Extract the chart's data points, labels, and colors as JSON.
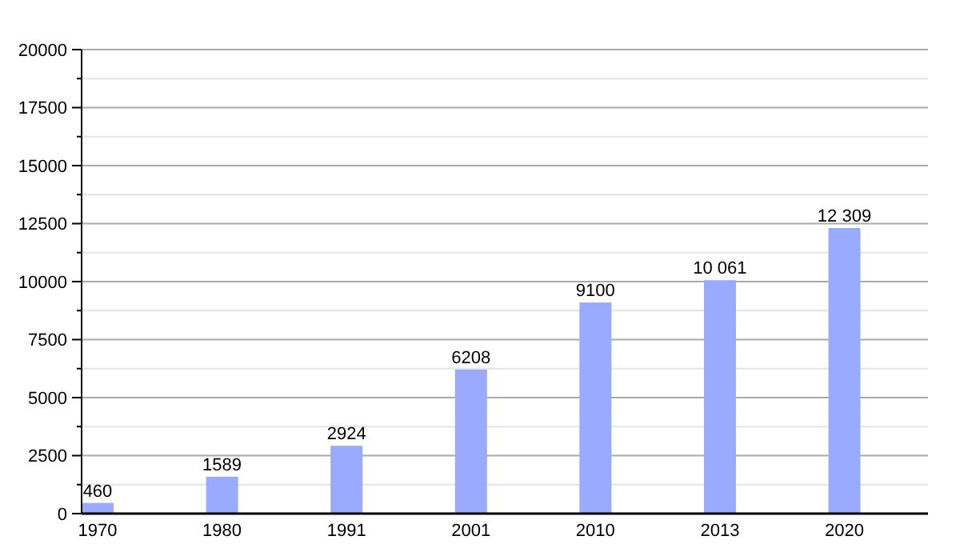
{
  "chart_data": {
    "type": "bar",
    "categories": [
      "1970",
      "1980",
      "1991",
      "2001",
      "2010",
      "2013",
      "2020"
    ],
    "values": [
      460,
      1589,
      2924,
      6208,
      9100,
      10061,
      12309
    ],
    "value_labels": [
      "460",
      "1589",
      "2924",
      "6208",
      "9100",
      "10 061",
      "12 309"
    ],
    "color": "#99aaff",
    "ylim": [
      0,
      20000
    ],
    "yticks": [
      0,
      {
        "value": 1250,
        "label": null
      },
      2500,
      {
        "value": 3750,
        "label": null
      },
      5000,
      {
        "value": 6250,
        "label": null
      },
      7500,
      {
        "value": 8750,
        "label": null
      },
      10000,
      {
        "value": 11250,
        "label": null
      },
      12500,
      {
        "value": 13750,
        "label": null
      },
      15000,
      {
        "value": 16250,
        "label": null
      },
      17500,
      {
        "value": 18750,
        "label": null
      },
      20000
    ],
    "grid": "y"
  }
}
